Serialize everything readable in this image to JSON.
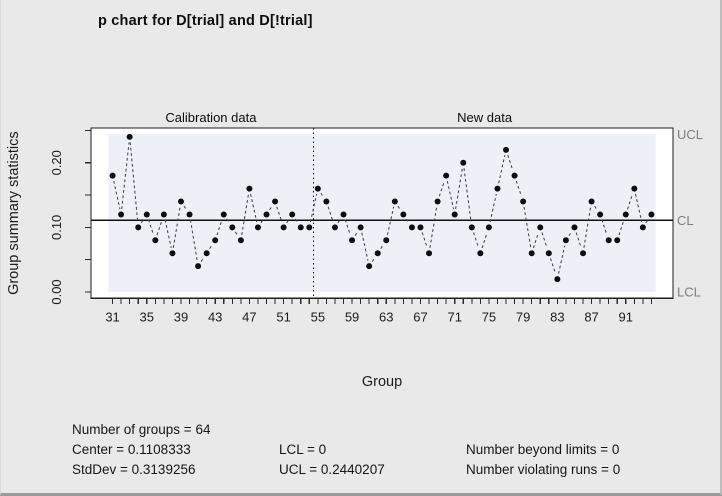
{
  "title": "p chart for D[trial] and D[!trial]",
  "colors": {
    "window_bg": "#e9e9e9",
    "plot_bg": "#ffffff",
    "in_control_band": "#edf0f7",
    "frame": "#1f1f1f",
    "point": "#0d0d0d",
    "connector": "#3c3c3c",
    "limit_label": "#7f7f7f",
    "axis_text": "#1c1c1c"
  },
  "chart_data": {
    "type": "line",
    "title": "p chart for D[trial] and D[!trial]",
    "xlabel": "Group",
    "ylabel": "Group summary statistics",
    "x_start": 31,
    "values": [
      0.18,
      0.12,
      0.24,
      0.1,
      0.12,
      0.08,
      0.12,
      0.06,
      0.14,
      0.12,
      0.04,
      0.06,
      0.08,
      0.12,
      0.1,
      0.08,
      0.16,
      0.1,
      0.12,
      0.14,
      0.1,
      0.12,
      0.1,
      0.1,
      0.16,
      0.14,
      0.1,
      0.12,
      0.08,
      0.1,
      0.04,
      0.06,
      0.08,
      0.14,
      0.12,
      0.1,
      0.1,
      0.06,
      0.14,
      0.18,
      0.12,
      0.2,
      0.1,
      0.06,
      0.1,
      0.16,
      0.22,
      0.18,
      0.14,
      0.06,
      0.1,
      0.06,
      0.02,
      0.08,
      0.1,
      0.06,
      0.14,
      0.12,
      0.08,
      0.08,
      0.12,
      0.16,
      0.1,
      0.12
    ],
    "center": 0.1108333,
    "ucl": 0.2440207,
    "lcl": 0,
    "ylim": [
      0,
      0.25
    ],
    "grid": false,
    "y_axis_ticks": [
      0,
      0.05,
      0.1,
      0.15,
      0.2,
      0.25
    ],
    "y_axis_labels": [
      {
        "value": 0.0,
        "label": "0.00"
      },
      {
        "value": 0.1,
        "label": "0.10"
      },
      {
        "value": 0.2,
        "label": "0.20"
      }
    ],
    "x_axis_labeled_ticks": [
      31,
      35,
      39,
      43,
      47,
      51,
      55,
      59,
      63,
      67,
      71,
      75,
      79,
      83,
      87,
      91
    ],
    "regions": [
      {
        "label": "Calibration data",
        "from": 31,
        "to": 54
      },
      {
        "label": "New data",
        "from": 55,
        "to": 94
      }
    ],
    "limit_labels": {
      "ucl": "UCL",
      "cl": "CL",
      "lcl": "LCL"
    }
  },
  "stats": {
    "number_of_groups": "Number of groups = 64",
    "center": "Center = 0.1108333",
    "std_dev": "StdDev = 0.3139256",
    "lcl": "LCL = 0",
    "ucl": "UCL = 0.2440207",
    "beyond_limits": "Number beyond limits = 0",
    "violating_runs": "Number violating runs = 0"
  }
}
